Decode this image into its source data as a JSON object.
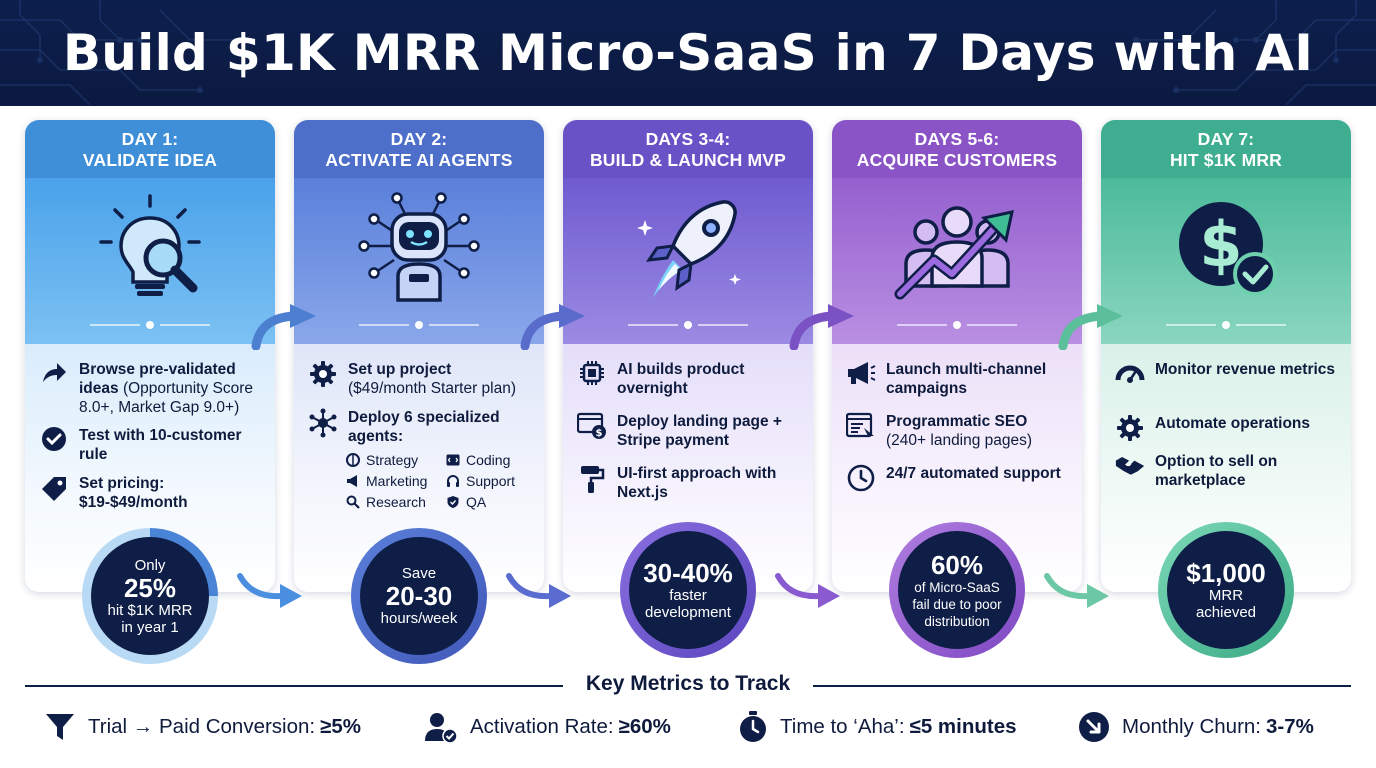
{
  "header": {
    "title": "Build $1K MRR Micro-SaaS in 7 Days with AI"
  },
  "cards": [
    {
      "head_line1": "DAY 1:",
      "head_line2": "VALIDATE IDEA",
      "icon": "lightbulb-magnifier-icon",
      "items": [
        {
          "icon": "arrow-forward-icon",
          "bold": "Browse pre-validated ideas",
          "light": " (Opportunity Score 8.0+, Market Gap 9.0+)"
        },
        {
          "icon": "check-circle-icon",
          "bold": "Test with 10-customer rule",
          "light": ""
        },
        {
          "icon": "price-tag-icon",
          "bold": "Set pricing: $19-$49/month",
          "light": ""
        }
      ],
      "badge": {
        "line1": "Only",
        "big": "25%",
        "line2": "hit $1K MRR",
        "line3": "in year 1"
      }
    },
    {
      "head_line1": "DAY 2:",
      "head_line2": "ACTIVATE AI AGENTS",
      "icon": "robot-icon",
      "items": [
        {
          "icon": "gear-icon",
          "bold": "Set up project",
          "light": "($49/month Starter plan)"
        },
        {
          "icon": "network-icon",
          "bold": "Deploy 6 specialized agents:",
          "light": ""
        }
      ],
      "agents": [
        "Strategy",
        "Coding",
        "Marketing",
        "Support",
        "Research",
        "QA"
      ],
      "badge": {
        "line1": "Save",
        "big": "20-30",
        "line2": "hours/week"
      }
    },
    {
      "head_line1": "DAYS 3-4:",
      "head_line2": "BUILD & LAUNCH MVP",
      "icon": "rocket-icon",
      "items": [
        {
          "icon": "chip-icon",
          "bold": "AI builds product overnight",
          "light": ""
        },
        {
          "icon": "browser-payment-icon",
          "bold": "Deploy landing page + Stripe payment",
          "light": ""
        },
        {
          "icon": "paint-roller-icon",
          "bold": "UI-first approach with Next.js",
          "light": ""
        }
      ],
      "badge": {
        "big": "30-40%",
        "line1": "faster",
        "line2": "development"
      }
    },
    {
      "head_line1": "DAYS 5-6:",
      "head_line2": "ACQUIRE CUSTOMERS",
      "icon": "group-growth-icon",
      "items": [
        {
          "icon": "megaphone-icon",
          "bold": "Launch multi-channel campaigns",
          "light": ""
        },
        {
          "icon": "seo-page-icon",
          "bold": "Programmatic SEO",
          "light": "(240+ landing pages)"
        },
        {
          "icon": "clock-icon",
          "bold": "24/7 automated support",
          "light": ""
        }
      ],
      "badge": {
        "big": "60%",
        "line1": "of Micro-SaaS",
        "line2": "fail due to poor",
        "line3": "distribution"
      }
    },
    {
      "head_line1": "DAY 7:",
      "head_line2": "HIT $1K MRR",
      "icon": "dollar-check-icon",
      "items": [
        {
          "icon": "gauge-icon",
          "bold": "Monitor revenue metrics",
          "light": ""
        },
        {
          "icon": "gear-icon",
          "bold": "Automate operations",
          "light": ""
        },
        {
          "icon": "handshake-icon",
          "bold": "Option to sell on marketplace",
          "light": ""
        }
      ],
      "badge": {
        "big": "$1,000",
        "line1": "MRR",
        "line2": "achieved"
      }
    }
  ],
  "metrics": {
    "title": "Key Metrics to Track",
    "items": [
      {
        "icon": "funnel-icon",
        "label": "Trial → Paid Conversion:",
        "value": "≥5%"
      },
      {
        "icon": "user-check-icon",
        "label": "Activation Rate:",
        "value": "≥60%"
      },
      {
        "icon": "stopwatch-icon",
        "label": "Time to ‘Aha’:",
        "value": "≤5 minutes"
      },
      {
        "icon": "arrow-down-right-icon",
        "label": "Monthly Churn:",
        "value": "3-7%"
      }
    ]
  },
  "colors": {
    "navy": "#0f1e47",
    "day1": "#3f8fd8",
    "day2": "#4d6fc9",
    "day3": "#6852c6",
    "day4": "#8a54c6",
    "day5": "#3fae90"
  }
}
